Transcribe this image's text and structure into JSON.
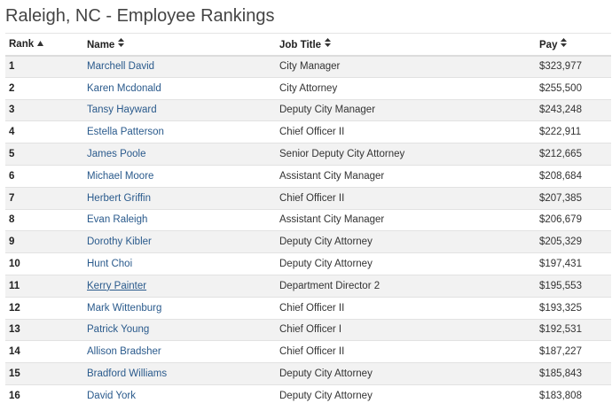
{
  "page": {
    "title": "Raleigh, NC - Employee Rankings"
  },
  "table": {
    "columns": [
      {
        "label": "Rank",
        "sort": "asc",
        "icon": "sort-asc-icon"
      },
      {
        "label": "Name",
        "sort": "both",
        "icon": "sort-icon"
      },
      {
        "label": "Job Title",
        "sort": "both",
        "icon": "sort-icon"
      },
      {
        "label": "Pay",
        "sort": "both",
        "icon": "sort-icon"
      }
    ],
    "rows": [
      {
        "rank": "1",
        "name": "Marchell David",
        "job_title": "City Manager",
        "pay": "$323,977"
      },
      {
        "rank": "2",
        "name": "Karen Mcdonald",
        "job_title": "City Attorney",
        "pay": "$255,500"
      },
      {
        "rank": "3",
        "name": "Tansy Hayward",
        "job_title": "Deputy City Manager",
        "pay": "$243,248"
      },
      {
        "rank": "4",
        "name": "Estella Patterson",
        "job_title": "Chief Officer II",
        "pay": "$222,911"
      },
      {
        "rank": "5",
        "name": "James Poole",
        "job_title": "Senior Deputy City Attorney",
        "pay": "$212,665"
      },
      {
        "rank": "6",
        "name": "Michael Moore",
        "job_title": "Assistant City Manager",
        "pay": "$208,684"
      },
      {
        "rank": "7",
        "name": "Herbert Griffin",
        "job_title": "Chief Officer II",
        "pay": "$207,385"
      },
      {
        "rank": "8",
        "name": "Evan Raleigh",
        "job_title": "Assistant City Manager",
        "pay": "$206,679"
      },
      {
        "rank": "9",
        "name": "Dorothy Kibler",
        "job_title": "Deputy City Attorney",
        "pay": "$205,329"
      },
      {
        "rank": "10",
        "name": "Hunt Choi",
        "job_title": "Deputy City Attorney",
        "pay": "$197,431"
      },
      {
        "rank": "11",
        "name": "Kerry Painter",
        "job_title": "Department Director 2",
        "pay": "$195,553",
        "underlined": true
      },
      {
        "rank": "12",
        "name": "Mark Wittenburg",
        "job_title": "Chief Officer II",
        "pay": "$193,325"
      },
      {
        "rank": "13",
        "name": "Patrick Young",
        "job_title": "Chief Officer I",
        "pay": "$192,531"
      },
      {
        "rank": "14",
        "name": "Allison Bradsher",
        "job_title": "Chief Officer II",
        "pay": "$187,227"
      },
      {
        "rank": "15",
        "name": "Bradford Williams",
        "job_title": "Deputy City Attorney",
        "pay": "$185,843"
      },
      {
        "rank": "16",
        "name": "David York",
        "job_title": "Deputy City Attorney",
        "pay": "$183,808"
      }
    ]
  },
  "colors": {
    "link": "#2a5a8c",
    "row_stripe": "#f2f2f2",
    "border": "#e2e2e2"
  },
  "icons": {
    "sort-asc-icon": "▲",
    "sort-icon": "▲▼"
  }
}
